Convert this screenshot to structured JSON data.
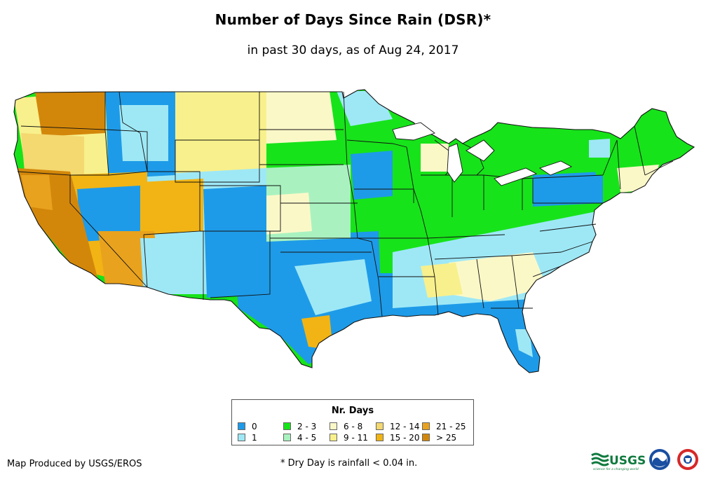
{
  "title": "Number of Days Since Rain (DSR)*",
  "subtitle": "in past 30 days, as of Aug 24, 2017",
  "legend": {
    "title": "Nr. Days",
    "items": [
      {
        "label": "0",
        "color": "#1e9be8"
      },
      {
        "label": "1",
        "color": "#9ee8f6"
      },
      {
        "label": "2 - 3",
        "color": "#17e31a"
      },
      {
        "label": "4 - 5",
        "color": "#a9f2c0"
      },
      {
        "label": "6 - 8",
        "color": "#fbf8c8"
      },
      {
        "label": "9 - 11",
        "color": "#f8f08c"
      },
      {
        "label": "12 - 14",
        "color": "#f4d870"
      },
      {
        "label": "15 - 20",
        "color": "#f2b414"
      },
      {
        "label": "21 - 25",
        "color": "#e9a21e"
      },
      {
        "label": "> 25",
        "color": "#d3870a"
      }
    ]
  },
  "credit": "Map Produced by USGS/EROS",
  "note": "* Dry Day is rainfall < 0.04 in.",
  "logos": {
    "usgs": "USGS",
    "usgs_tagline": "science for a changing world",
    "icons": [
      "usgs-logo-icon",
      "noaa-logo-icon",
      "nws-logo-icon"
    ]
  }
}
